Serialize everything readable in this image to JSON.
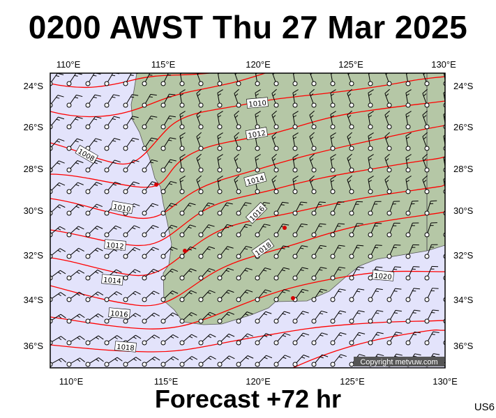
{
  "header": {
    "title": "0200 AWST Thu 27 Mar 2025"
  },
  "footer": {
    "forecast": "Forecast +72 hr",
    "code": "US6"
  },
  "map": {
    "lon_labels": [
      "110°E",
      "115°E",
      "120°E",
      "125°E",
      "130°E"
    ],
    "lat_labels": [
      "24°S",
      "26°S",
      "28°S",
      "30°S",
      "32°S",
      "34°S",
      "36°S"
    ],
    "isobar_labels": [
      "1008",
      "1010",
      "1010",
      "1012",
      "1012",
      "1014",
      "1014",
      "1016",
      "1016",
      "1018",
      "1018",
      "1020"
    ],
    "copyright": "Copyright metvuw.com",
    "colors": {
      "sea": "#e3e3fb",
      "land": "#b5c7a6",
      "isobar": "#ff0000",
      "barb": "#000000",
      "city": "#d40000"
    }
  }
}
